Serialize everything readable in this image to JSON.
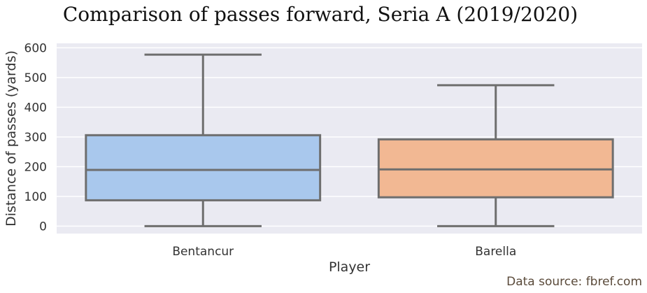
{
  "chart_data": {
    "type": "box",
    "title": "Comparison of passes forward, Seria A (2019/2020)",
    "xlabel": "Player",
    "ylabel": "Distance of passes (yards)",
    "ylim": [
      -25,
      615
    ],
    "yticks": [
      0,
      100,
      200,
      300,
      400,
      500,
      600
    ],
    "grid": true,
    "categories": [
      "Bentancur",
      "Barella"
    ],
    "series": [
      {
        "category": "Bentancur",
        "min": 0,
        "q1": 87,
        "median": 189,
        "q3": 306,
        "max": 577,
        "color": "#a9c8ed"
      },
      {
        "category": "Barella",
        "min": 0,
        "q1": 97,
        "median": 191,
        "q3": 292,
        "max": 474,
        "color": "#f2b893"
      }
    ],
    "source": "Data source: fbref.com"
  }
}
